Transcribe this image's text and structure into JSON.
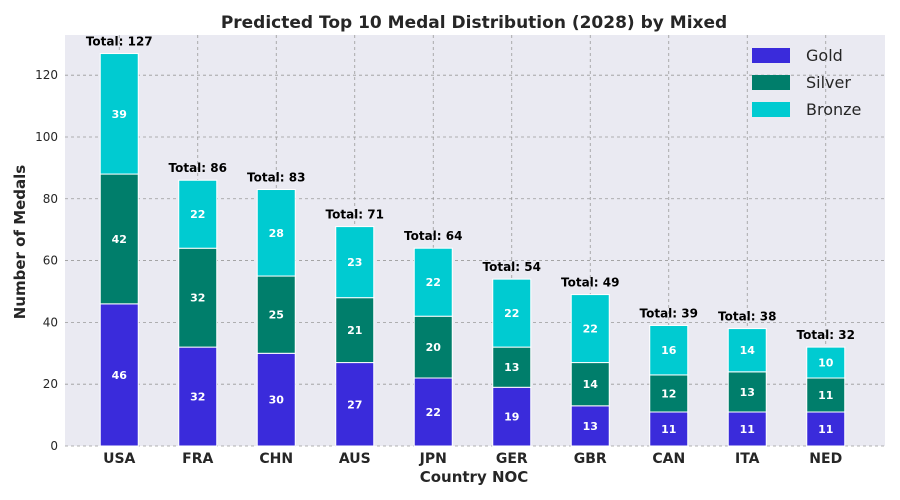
{
  "chart_data": {
    "type": "bar",
    "stacked": true,
    "title": "Predicted Top 10 Medal Distribution (2028) by Mixed",
    "xlabel": "Country NOC",
    "ylabel": "Number of Medals",
    "categories": [
      "USA",
      "FRA",
      "CHN",
      "AUS",
      "JPN",
      "GER",
      "GBR",
      "CAN",
      "ITA",
      "NED"
    ],
    "series": [
      {
        "name": "Gold",
        "color": "#3a2bdb",
        "values": [
          46,
          32,
          30,
          27,
          22,
          19,
          13,
          11,
          11,
          11
        ]
      },
      {
        "name": "Silver",
        "color": "#007e6b",
        "values": [
          42,
          32,
          25,
          21,
          20,
          13,
          14,
          12,
          13,
          11
        ]
      },
      {
        "name": "Bronze",
        "color": "#00cbd1",
        "values": [
          39,
          22,
          28,
          23,
          22,
          22,
          22,
          16,
          14,
          10
        ]
      }
    ],
    "totals": [
      "Total: 127",
      "Total: 86",
      "Total: 83",
      "Total: 71",
      "Total: 64",
      "Total: 54",
      "Total: 49",
      "Total: 39",
      "Total: 38",
      "Total: 32"
    ],
    "ylim": [
      0,
      133
    ],
    "yticks": [
      0,
      20,
      40,
      60,
      80,
      100,
      120
    ],
    "grid": true,
    "legend_position": "top-right",
    "background": "#eaeaf2"
  }
}
